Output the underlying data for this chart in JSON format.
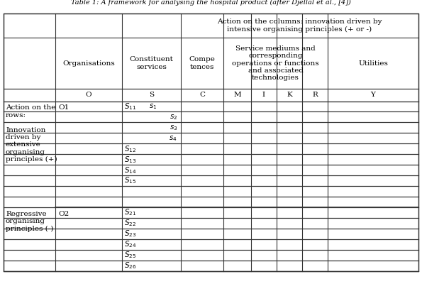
{
  "title": "Table 1: A framework for analysing the hospital product (after Djellal et al., [4])",
  "bg_color": "#ffffff",
  "border_color": "#333333",
  "header_top_text": "Action on the columns: innovation driven by\nintensive organising principles (+ or -)",
  "col_headers_row1": [
    "",
    "Organisations",
    "Constituent\nservices",
    "Compe\ntences",
    "Service mediums and\ncorresponding\noperations or functions\nand associated\ntechnologies",
    "",
    "",
    "",
    "Utilities"
  ],
  "col_headers_row2": [
    "",
    "O",
    "S",
    "C",
    "M",
    "I",
    "K",
    "R",
    "Y"
  ],
  "row_label_top": "Action on the\nrows:\n\nInnovation\ndriven by\nextensive\norganising\nprinciples (+)",
  "row_label_bottom": "Regressive\norganising\nprinciples (-)",
  "font_family": "DejaVu Serif",
  "font_size": 7.5
}
